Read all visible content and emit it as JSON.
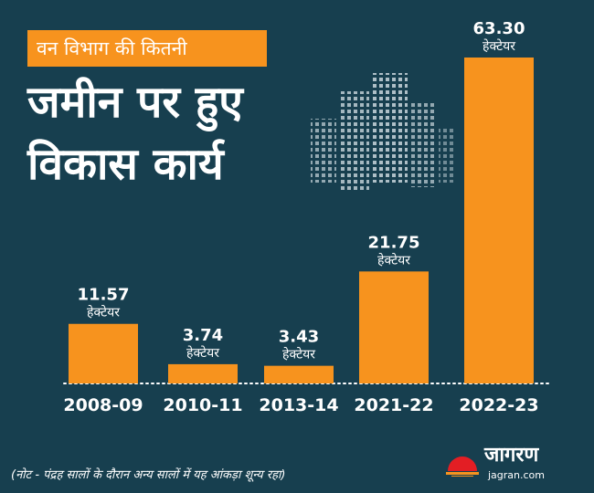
{
  "header": {
    "subtitle": "वन विभाग की कितनी",
    "title_line1": "जमीन पर हुए",
    "title_line2": "विकास कार्य"
  },
  "chart_data": {
    "type": "bar",
    "categories": [
      "2008-09",
      "2010-11",
      "2013-14",
      "2021-22",
      "2022-23"
    ],
    "values": [
      11.57,
      3.74,
      3.43,
      21.75,
      63.3
    ],
    "value_labels": [
      "11.57",
      "3.74",
      "3.43",
      "21.75",
      "63.30"
    ],
    "unit": "हेक्टेयर",
    "title": "वन विभाग की कितनी जमीन पर हुए विकास कार्य",
    "xlabel": "",
    "ylabel": "",
    "ylim": [
      0,
      63.3
    ],
    "grid": false,
    "bar_color": "#f7931e"
  },
  "note": "(नोट - पंद्रह सालों के दौरान अन्य सालों में यह आंकड़ा शून्य रहा)",
  "logo": {
    "name": "जागरण",
    "url": "jagran.com"
  },
  "colors": {
    "background": "#173f4f",
    "accent": "#f7931e",
    "text": "#ffffff",
    "logo_red": "#e31e24"
  }
}
